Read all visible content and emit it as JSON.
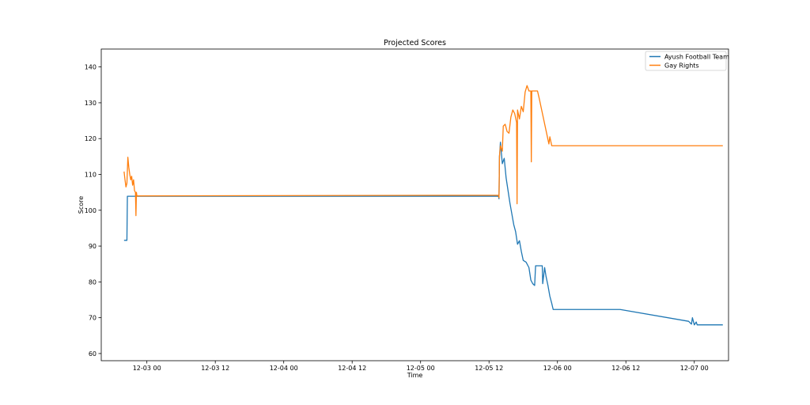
{
  "chart_data": {
    "type": "line",
    "title": "Projected Scores",
    "xlabel": "Time",
    "ylabel": "Score",
    "x_axis_kind": "datetime",
    "xlim": [
      "2023-12-02 16:00",
      "2023-12-07 06:00"
    ],
    "ylim": [
      58,
      145
    ],
    "x_ticks": [
      {
        "label": "12-03 00",
        "value": "2023-12-03 00:00"
      },
      {
        "label": "12-03 12",
        "value": "2023-12-03 12:00"
      },
      {
        "label": "12-04 00",
        "value": "2023-12-04 00:00"
      },
      {
        "label": "12-04 12",
        "value": "2023-12-04 12:00"
      },
      {
        "label": "12-05 00",
        "value": "2023-12-05 00:00"
      },
      {
        "label": "12-05 12",
        "value": "2023-12-05 12:00"
      },
      {
        "label": "12-06 00",
        "value": "2023-12-06 00:00"
      },
      {
        "label": "12-06 12",
        "value": "2023-12-06 12:00"
      },
      {
        "label": "12-07 00",
        "value": "2023-12-07 00:00"
      }
    ],
    "y_ticks": [
      60,
      70,
      80,
      90,
      100,
      110,
      120,
      130,
      140
    ],
    "grid": false,
    "legend_position": "top-right",
    "series": [
      {
        "name": "Ayush Football Team",
        "color": "#1f77b4",
        "points": [
          [
            "2023-12-02 20:00",
            91.6
          ],
          [
            "2023-12-02 20:30",
            91.6
          ],
          [
            "2023-12-02 20:35",
            103.9
          ],
          [
            "2023-12-03 03:00",
            103.9
          ],
          [
            "2023-12-05 13:40",
            103.9
          ],
          [
            "2023-12-05 13:45",
            103.2
          ],
          [
            "2023-12-05 13:50",
            115.0
          ],
          [
            "2023-12-05 14:00",
            119.0
          ],
          [
            "2023-12-05 14:10",
            116.0
          ],
          [
            "2023-12-05 14:20",
            113.0
          ],
          [
            "2023-12-05 14:40",
            114.5
          ],
          [
            "2023-12-05 15:00",
            109.0
          ],
          [
            "2023-12-05 15:20",
            105.5
          ],
          [
            "2023-12-05 15:40",
            102.0
          ],
          [
            "2023-12-05 16:00",
            99.0
          ],
          [
            "2023-12-05 16:20",
            96.0
          ],
          [
            "2023-12-05 16:40",
            94.0
          ],
          [
            "2023-12-05 17:00",
            90.5
          ],
          [
            "2023-12-05 17:20",
            91.5
          ],
          [
            "2023-12-05 17:40",
            88.5
          ],
          [
            "2023-12-05 18:00",
            86.0
          ],
          [
            "2023-12-05 18:30",
            85.5
          ],
          [
            "2023-12-05 19:00",
            84.0
          ],
          [
            "2023-12-05 19:20",
            80.5
          ],
          [
            "2023-12-05 19:40",
            79.5
          ],
          [
            "2023-12-05 20:00",
            79.0
          ],
          [
            "2023-12-05 20:10",
            84.5
          ],
          [
            "2023-12-05 21:20",
            84.5
          ],
          [
            "2023-12-05 21:25",
            79.5
          ],
          [
            "2023-12-05 21:45",
            84.0
          ],
          [
            "2023-12-05 22:00",
            81.5
          ],
          [
            "2023-12-05 22:20",
            79.0
          ],
          [
            "2023-12-05 22:40",
            76.0
          ],
          [
            "2023-12-05 23:00",
            74.0
          ],
          [
            "2023-12-05 23:15",
            72.3
          ],
          [
            "2023-12-06 11:00",
            72.3
          ],
          [
            "2023-12-06 23:00",
            69.0
          ],
          [
            "2023-12-06 23:30",
            68.2
          ],
          [
            "2023-12-06 23:40",
            70.0
          ],
          [
            "2023-12-07 00:00",
            68.0
          ],
          [
            "2023-12-07 00:20",
            68.8
          ],
          [
            "2023-12-07 00:30",
            68.0
          ],
          [
            "2023-12-07 05:00",
            68.0
          ]
        ]
      },
      {
        "name": "Gay Rights",
        "color": "#ff7f0e",
        "points": [
          [
            "2023-12-02 20:00",
            110.8
          ],
          [
            "2023-12-02 20:10",
            108.5
          ],
          [
            "2023-12-02 20:20",
            106.5
          ],
          [
            "2023-12-02 20:30",
            107.5
          ],
          [
            "2023-12-02 20:40",
            114.8
          ],
          [
            "2023-12-02 20:50",
            112.0
          ],
          [
            "2023-12-02 21:00",
            110.0
          ],
          [
            "2023-12-02 21:10",
            108.5
          ],
          [
            "2023-12-02 21:20",
            109.5
          ],
          [
            "2023-12-02 21:30",
            107.0
          ],
          [
            "2023-12-02 21:40",
            108.5
          ],
          [
            "2023-12-02 21:50",
            105.5
          ],
          [
            "2023-12-02 22:00",
            105.0
          ],
          [
            "2023-12-02 22:05",
            98.5
          ],
          [
            "2023-12-02 22:10",
            105.0
          ],
          [
            "2023-12-02 22:15",
            104.0
          ],
          [
            "2023-12-05 13:40",
            104.2
          ],
          [
            "2023-12-05 13:45",
            103.5
          ],
          [
            "2023-12-05 13:50",
            115.0
          ],
          [
            "2023-12-05 14:00",
            118.0
          ],
          [
            "2023-12-05 14:20",
            116.5
          ],
          [
            "2023-12-05 14:30",
            123.5
          ],
          [
            "2023-12-05 14:50",
            124.0
          ],
          [
            "2023-12-05 15:10",
            122.0
          ],
          [
            "2023-12-05 15:30",
            121.5
          ],
          [
            "2023-12-05 15:50",
            126.0
          ],
          [
            "2023-12-05 16:10",
            128.0
          ],
          [
            "2023-12-05 16:30",
            127.0
          ],
          [
            "2023-12-05 16:50",
            124.5
          ],
          [
            "2023-12-05 16:55",
            101.8
          ],
          [
            "2023-12-05 17:00",
            128.0
          ],
          [
            "2023-12-05 17:20",
            125.5
          ],
          [
            "2023-12-05 17:40",
            129.0
          ],
          [
            "2023-12-05 18:00",
            127.5
          ],
          [
            "2023-12-05 18:20",
            133.0
          ],
          [
            "2023-12-05 18:40",
            134.8
          ],
          [
            "2023-12-05 19:00",
            133.3
          ],
          [
            "2023-12-05 19:20",
            133.3
          ],
          [
            "2023-12-05 19:25",
            113.5
          ],
          [
            "2023-12-05 19:30",
            133.3
          ],
          [
            "2023-12-05 20:30",
            133.3
          ],
          [
            "2023-12-05 20:50",
            131.0
          ],
          [
            "2023-12-05 21:10",
            128.5
          ],
          [
            "2023-12-05 21:30",
            126.0
          ],
          [
            "2023-12-05 21:50",
            123.5
          ],
          [
            "2023-12-05 22:10",
            121.0
          ],
          [
            "2023-12-05 22:30",
            118.5
          ],
          [
            "2023-12-05 22:40",
            120.5
          ],
          [
            "2023-12-05 23:00",
            118.0
          ],
          [
            "2023-12-07 05:00",
            118.0
          ]
        ]
      }
    ]
  }
}
